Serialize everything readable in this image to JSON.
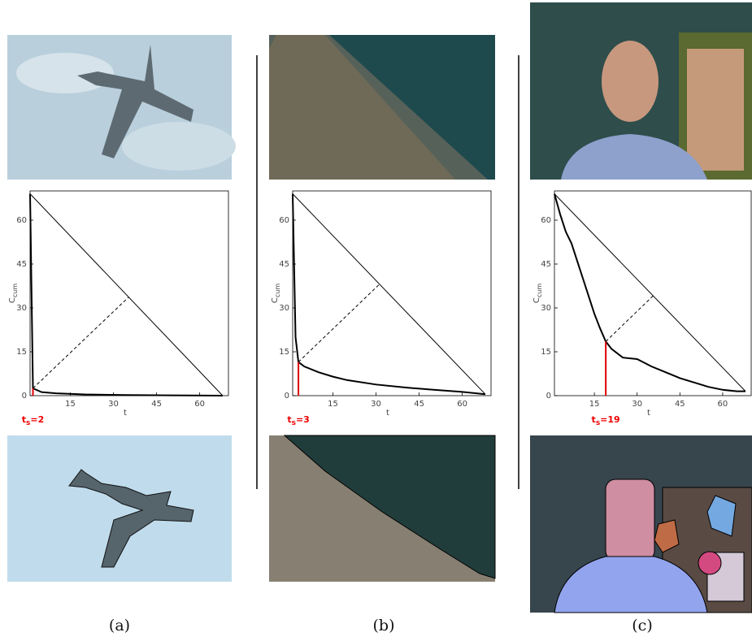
{
  "chart_data": [
    {
      "type": "line",
      "caption": "(a)",
      "xlabel": "t",
      "ylabel": [
        "C",
        "cum"
      ],
      "x": [
        1,
        2,
        5,
        10,
        20,
        35,
        50,
        68
      ],
      "series": [
        {
          "color": "#000000",
          "values": [
            69,
            2.5,
            1.2,
            0.8,
            0.4,
            0.2,
            0.1,
            0
          ]
        }
      ],
      "xlim": [
        1,
        70
      ],
      "ylim": [
        0,
        70
      ],
      "xticks": [
        15,
        30,
        45,
        60
      ],
      "yticks": [
        0,
        15,
        30,
        45,
        60
      ],
      "knee_x": 2,
      "knee_label": [
        "t",
        "s",
        "=2"
      ],
      "knee_color": "#e00000"
    },
    {
      "type": "line",
      "caption": "(b)",
      "xlabel": "t",
      "ylabel": [
        "C",
        "cum"
      ],
      "x": [
        1,
        2,
        3,
        5,
        10,
        15,
        20,
        30,
        40,
        50,
        60,
        68
      ],
      "series": [
        {
          "color": "#000000",
          "values": [
            69,
            20,
            11.5,
            10,
            8,
            6.5,
            5.3,
            3.8,
            2.8,
            2,
            1.3,
            0.5
          ]
        }
      ],
      "xlim": [
        1,
        70
      ],
      "ylim": [
        0,
        70
      ],
      "xticks": [
        15,
        30,
        45,
        60
      ],
      "yticks": [
        0,
        15,
        30,
        45,
        60
      ],
      "knee_x": 3,
      "knee_label": [
        "t",
        "s",
        "=3"
      ],
      "knee_color": "#e00000"
    },
    {
      "type": "line",
      "caption": "(c)",
      "xlabel": "t",
      "ylabel": [
        "C",
        "cum"
      ],
      "x": [
        1,
        3,
        5,
        7,
        9,
        11,
        13,
        15,
        17,
        19,
        21,
        23,
        25,
        30,
        35,
        40,
        45,
        50,
        55,
        60,
        65,
        68
      ],
      "series": [
        {
          "color": "#000000",
          "values": [
            69,
            62,
            56,
            52,
            46,
            40,
            34,
            28,
            23,
            18.5,
            16,
            14.5,
            13,
            12.5,
            10,
            8,
            6,
            4.5,
            3,
            2,
            1.5,
            1.5
          ]
        }
      ],
      "xlim": [
        1,
        70
      ],
      "ylim": [
        0,
        70
      ],
      "xticks": [
        15,
        30,
        45,
        60
      ],
      "yticks": [
        0,
        15,
        30,
        45,
        60
      ],
      "knee_x": 19,
      "knee_label": [
        "t",
        "s",
        "=19"
      ],
      "knee_color": "#e00000"
    }
  ]
}
